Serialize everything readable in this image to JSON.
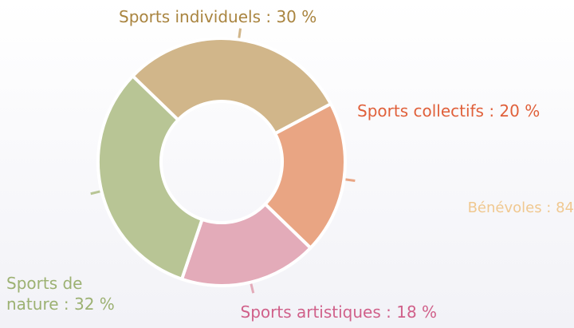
{
  "chart_data": {
    "type": "donut",
    "values": [
      30,
      20,
      18,
      32
    ],
    "value_labels": [
      "Sports individuels : 30 %",
      "Sports collectifs : 20 %",
      "Sports artistiques : 18 %",
      "Sports de nature : 32 %"
    ],
    "colors": [
      "#d1b68a",
      "#e9a583",
      "#e3abb9",
      "#b8c595"
    ],
    "label_colors": [
      "#a9843f",
      "#e0603a",
      "#d0608a",
      "#9cb172"
    ],
    "annotation": "Bénévoles : 84"
  }
}
